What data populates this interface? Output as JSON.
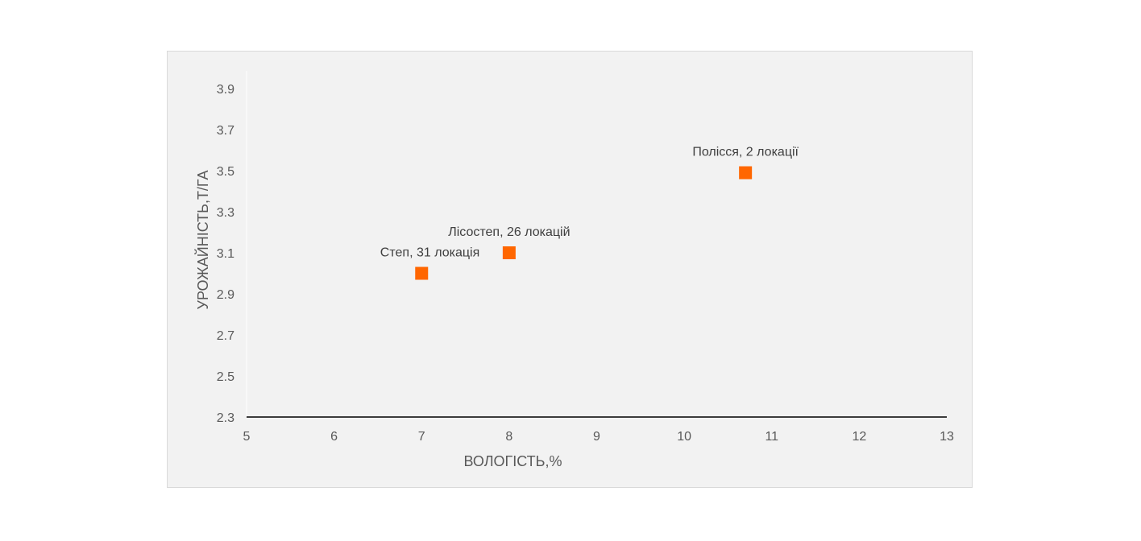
{
  "chart_data": {
    "type": "scatter",
    "xlabel": "ВОЛОГІСТЬ,%",
    "ylabel": "УРОЖАЙНІСТЬ,Т/ГА",
    "xlim": [
      5,
      13
    ],
    "ylim": [
      2.3,
      3.9
    ],
    "x_ticks": [
      "5",
      "6",
      "7",
      "8",
      "9",
      "10",
      "11",
      "12",
      "13"
    ],
    "y_ticks": [
      "2.3",
      "2.5",
      "2.7",
      "2.9",
      "3.1",
      "3.3",
      "3.5",
      "3.7",
      "3.9"
    ],
    "grid": false,
    "points": [
      {
        "x": 7.0,
        "y": 3.0,
        "label": "Степ, 31 локація"
      },
      {
        "x": 8.0,
        "y": 3.1,
        "label": "Лісостеп, 26 локацій"
      },
      {
        "x": 10.7,
        "y": 3.49,
        "label": "Полісся, 2 локації"
      }
    ],
    "marker_color": "#ff6600"
  }
}
